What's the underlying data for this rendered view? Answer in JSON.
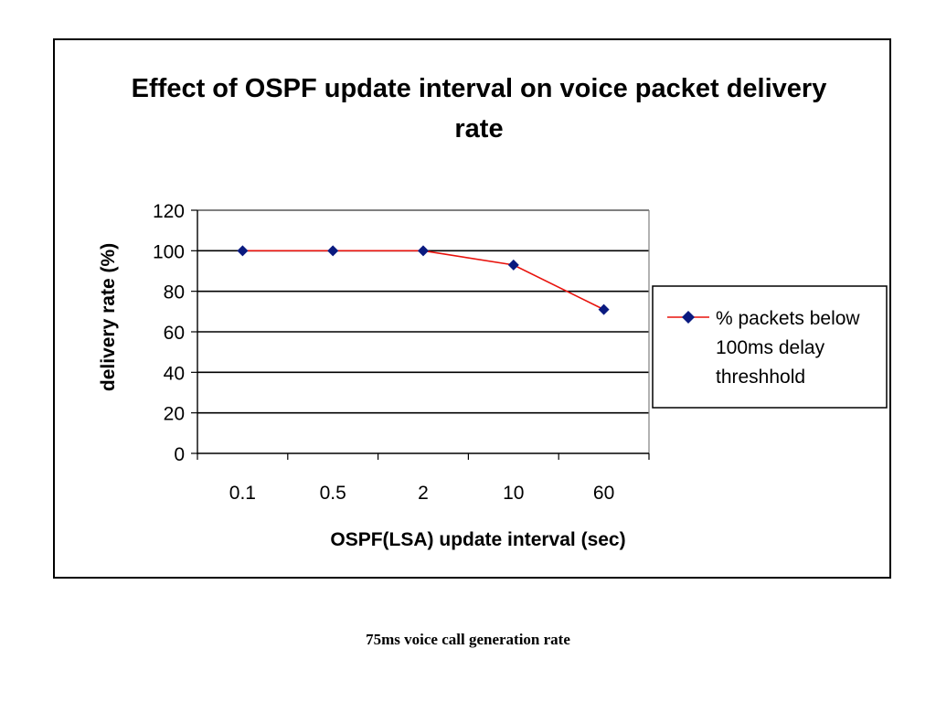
{
  "chart_data": {
    "type": "line",
    "title_lines": [
      "Effect of OSPF update interval on voice packet delivery",
      "rate"
    ],
    "xlabel": "OSPF(LSA) update interval (sec)",
    "ylabel": "delivery rate (%)",
    "categories": [
      "0.1",
      "0.5",
      "2",
      "10",
      "60"
    ],
    "ylim": [
      0,
      120
    ],
    "yticks": [
      0,
      20,
      40,
      60,
      80,
      100,
      120
    ],
    "grid": true,
    "legend_position": "right",
    "legend_lines": [
      "% packets below",
      "100ms delay",
      "threshhold"
    ],
    "series": [
      {
        "name": "% packets below 100ms delay threshhold",
        "values": [
          100,
          100,
          100,
          93,
          71
        ],
        "line_color": "#e8120c",
        "marker_color": "#0a1a80",
        "marker": "diamond"
      }
    ]
  },
  "caption": "75ms voice call generation rate"
}
